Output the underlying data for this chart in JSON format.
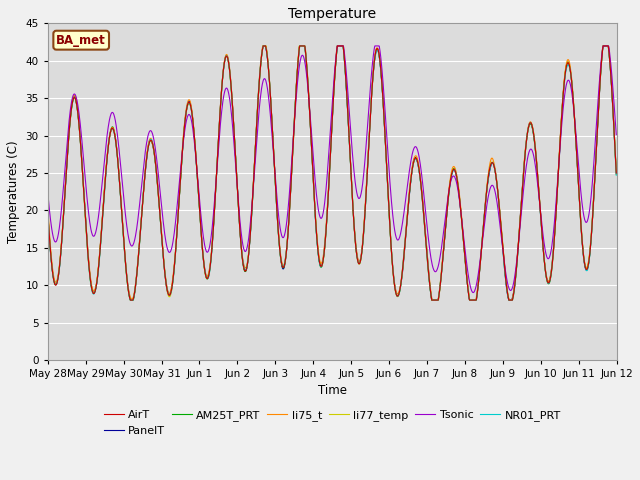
{
  "title": "Temperature",
  "xlabel": "Time",
  "ylabel": "Temperatures (C)",
  "ylim": [
    0,
    45
  ],
  "yticks": [
    0,
    5,
    10,
    15,
    20,
    25,
    30,
    35,
    40,
    45
  ],
  "annotation": "BA_met",
  "series_colors": {
    "AirT": "#cc0000",
    "PanelT": "#000099",
    "AM25T_PRT": "#00aa00",
    "li75_t": "#ff8800",
    "li77_temp": "#cccc00",
    "Tsonic": "#9900cc",
    "NR01_PRT": "#00cccc"
  },
  "x_tick_labels": [
    "May 28",
    "May 29",
    "May 30",
    "May 31",
    "Jun 1",
    "Jun 2",
    "Jun 3",
    "Jun 4",
    "Jun 5",
    "Jun 6",
    "Jun 7",
    "Jun 8",
    "Jun 9",
    "Jun 10",
    "Jun 11",
    "Jun 12"
  ],
  "num_days": 15,
  "fig_width": 6.4,
  "fig_height": 4.8,
  "dpi": 100
}
